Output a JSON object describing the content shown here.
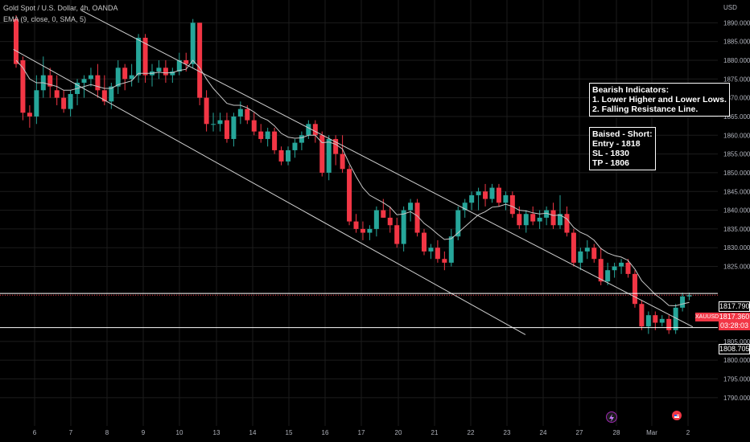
{
  "header": {
    "title": "Gold Spot / U.S. Dollar, 4h, OANDA",
    "indicator": "EMA (9, close, 0, SMA, 5)"
  },
  "axis": {
    "currency": "USD",
    "price_ticks": [
      "1890.000",
      "1885.000",
      "1880.000",
      "1875.000",
      "1870.000",
      "1865.000",
      "1860.000",
      "1855.000",
      "1850.000",
      "1845.000",
      "1840.000",
      "1835.000",
      "1830.000",
      "1825.000",
      "1805.000",
      "1800.000",
      "1795.000",
      "1790.000"
    ],
    "time_ticks": [
      "6",
      "7",
      "8",
      "9",
      "10",
      "13",
      "14",
      "15",
      "16",
      "17",
      "20",
      "21",
      "22",
      "23",
      "24",
      "27",
      "28",
      "Mar",
      "2"
    ]
  },
  "annotations": {
    "bearish": [
      "Bearish Indicators:",
      "1. Lower Higher and Lower Lows.",
      "2. Falling Resistance Line."
    ],
    "biased": [
      "Baised - Short:",
      "Entry - 1818",
      "SL - 1830",
      "TP -  1806"
    ]
  },
  "price_tags": {
    "level_upper": "1817.790",
    "symbol": "XAUUSD",
    "current_price": "1817.360",
    "countdown": "03:28:03",
    "level_lower": "1808.705"
  },
  "colors": {
    "up": "#26a69a",
    "down": "#f23645",
    "grid": "#1c1c1c",
    "ema": "#c8c8c8",
    "channel": "#d0d0d0",
    "level": "#ffffff",
    "current": "#f23645"
  },
  "chart_data": {
    "type": "candlestick",
    "title": "Gold Spot / U.S. Dollar, 4h, OANDA",
    "ylabel": "USD",
    "ylim": [
      1788,
      1895
    ],
    "candles": [
      [
        1891,
        1892,
        1878,
        1879
      ],
      [
        1880,
        1881,
        1864,
        1866
      ],
      [
        1866,
        1868,
        1862,
        1865
      ],
      [
        1865,
        1876,
        1863,
        1872
      ],
      [
        1872,
        1881,
        1870,
        1876
      ],
      [
        1876,
        1878,
        1870,
        1873
      ],
      [
        1872,
        1876,
        1868,
        1870
      ],
      [
        1870,
        1872,
        1866,
        1867
      ],
      [
        1867,
        1872,
        1865,
        1871
      ],
      [
        1871,
        1875,
        1868,
        1874
      ],
      [
        1874,
        1876,
        1870,
        1875
      ],
      [
        1875,
        1878,
        1873,
        1876
      ],
      [
        1876,
        1879,
        1870,
        1872
      ],
      [
        1872,
        1876,
        1868,
        1869
      ],
      [
        1869,
        1874,
        1867,
        1873
      ],
      [
        1873,
        1880,
        1871,
        1878
      ],
      [
        1878,
        1879,
        1872,
        1875
      ],
      [
        1875,
        1879,
        1873,
        1876
      ],
      [
        1876,
        1887,
        1874,
        1886
      ],
      [
        1886,
        1887,
        1874,
        1876
      ],
      [
        1876,
        1879,
        1873,
        1877
      ],
      [
        1877,
        1880,
        1875,
        1878
      ],
      [
        1878,
        1880,
        1874,
        1876
      ],
      [
        1876,
        1878,
        1874,
        1877
      ],
      [
        1877,
        1882,
        1876,
        1880
      ],
      [
        1880,
        1882,
        1877,
        1879
      ],
      [
        1879,
        1891,
        1878,
        1890
      ],
      [
        1890,
        1890,
        1868,
        1870
      ],
      [
        1870,
        1872,
        1861,
        1863
      ],
      [
        1863,
        1866,
        1861,
        1863
      ],
      [
        1863,
        1866,
        1861,
        1864
      ],
      [
        1864,
        1866,
        1858,
        1859
      ],
      [
        1859,
        1866,
        1857,
        1865
      ],
      [
        1865,
        1869,
        1863,
        1867
      ],
      [
        1867,
        1868,
        1863,
        1864
      ],
      [
        1864,
        1866,
        1860,
        1861
      ],
      [
        1861,
        1863,
        1858,
        1859
      ],
      [
        1859,
        1862,
        1857,
        1861
      ],
      [
        1861,
        1862,
        1855,
        1856
      ],
      [
        1856,
        1857,
        1852,
        1853
      ],
      [
        1853,
        1857,
        1852,
        1856
      ],
      [
        1856,
        1859,
        1854,
        1858
      ],
      [
        1858,
        1861,
        1856,
        1860
      ],
      [
        1860,
        1864,
        1859,
        1863
      ],
      [
        1863,
        1864,
        1858,
        1860
      ],
      [
        1860,
        1861,
        1849,
        1850
      ],
      [
        1850,
        1860,
        1848,
        1859
      ],
      [
        1859,
        1860,
        1852,
        1855
      ],
      [
        1855,
        1860,
        1850,
        1851
      ],
      [
        1851,
        1852,
        1836,
        1837
      ],
      [
        1837,
        1839,
        1834,
        1835
      ],
      [
        1835,
        1837,
        1832,
        1834
      ],
      [
        1834,
        1836,
        1832,
        1835
      ],
      [
        1835,
        1841,
        1833,
        1840
      ],
      [
        1840,
        1843,
        1838,
        1838
      ],
      [
        1838,
        1841,
        1834,
        1836
      ],
      [
        1836,
        1838,
        1830,
        1831
      ],
      [
        1831,
        1841,
        1829,
        1840
      ],
      [
        1840,
        1843,
        1837,
        1842
      ],
      [
        1842,
        1843,
        1833,
        1834
      ],
      [
        1834,
        1835,
        1828,
        1829
      ],
      [
        1829,
        1831,
        1827,
        1830
      ],
      [
        1830,
        1832,
        1826,
        1827
      ],
      [
        1827,
        1829,
        1824,
        1826
      ],
      [
        1826,
        1835,
        1825,
        1833
      ],
      [
        1833,
        1841,
        1832,
        1840
      ],
      [
        1840,
        1843,
        1838,
        1842
      ],
      [
        1842,
        1845,
        1840,
        1844
      ],
      [
        1844,
        1846,
        1840,
        1845
      ],
      [
        1845,
        1847,
        1841,
        1843
      ],
      [
        1843,
        1847,
        1842,
        1846
      ],
      [
        1846,
        1847,
        1841,
        1842
      ],
      [
        1842,
        1845,
        1840,
        1844
      ],
      [
        1844,
        1845,
        1838,
        1839
      ],
      [
        1839,
        1841,
        1835,
        1836
      ],
      [
        1836,
        1840,
        1834,
        1839
      ],
      [
        1839,
        1841,
        1836,
        1837
      ],
      [
        1837,
        1840,
        1835,
        1838
      ],
      [
        1838,
        1841,
        1836,
        1840
      ],
      [
        1840,
        1842,
        1835,
        1836
      ],
      [
        1836,
        1844,
        1835,
        1839
      ],
      [
        1839,
        1841,
        1833,
        1834
      ],
      [
        1834,
        1835,
        1825,
        1826
      ],
      [
        1826,
        1830,
        1824,
        1829
      ],
      [
        1829,
        1832,
        1827,
        1830
      ],
      [
        1830,
        1831,
        1826,
        1827
      ],
      [
        1827,
        1830,
        1820,
        1821
      ],
      [
        1821,
        1826,
        1820,
        1824
      ],
      [
        1824,
        1826,
        1822,
        1825
      ],
      [
        1825,
        1827,
        1823,
        1826
      ],
      [
        1826,
        1827,
        1822,
        1823
      ],
      [
        1823,
        1824,
        1814,
        1815
      ],
      [
        1815,
        1816,
        1808,
        1809
      ],
      [
        1809,
        1813,
        1807,
        1812
      ],
      [
        1812,
        1813,
        1808,
        1810
      ],
      [
        1810,
        1812,
        1809,
        1811
      ],
      [
        1811,
        1812,
        1807,
        1808
      ],
      [
        1808,
        1815,
        1807,
        1814
      ],
      [
        1814,
        1818,
        1813,
        1817
      ],
      [
        1817,
        1818,
        1816,
        1817.36
      ]
    ],
    "ema": [
      1880,
      1878,
      1875,
      1874,
      1874,
      1873.5,
      1873,
      1872,
      1872,
      1872.5,
      1873,
      1873.5,
      1873,
      1872.5,
      1872.5,
      1873.5,
      1874,
      1874.5,
      1876.5,
      1876.5,
      1876.5,
      1876.8,
      1876.6,
      1876.7,
      1877.3,
      1877.6,
      1880,
      1878,
      1875,
      1872.5,
      1870.5,
      1868.5,
      1868,
      1868,
      1867.3,
      1866.2,
      1864.8,
      1864,
      1862.5,
      1860.5,
      1859.5,
      1859.2,
      1859.3,
      1860,
      1860,
      1858,
      1858.2,
      1857.6,
      1856.3,
      1852.5,
      1849,
      1846,
      1844,
      1843,
      1842,
      1840.8,
      1838.8,
      1839,
      1839.6,
      1838.5,
      1836.5,
      1835.2,
      1833.6,
      1832.2,
      1832.4,
      1834,
      1835.6,
      1837.2,
      1838.8,
      1839.6,
      1840.8,
      1841,
      1841.6,
      1841,
      1840,
      1839.8,
      1839.3,
      1839,
      1839.2,
      1838.6,
      1838.7,
      1837.7,
      1835.4,
      1834.1,
      1833.3,
      1832,
      1829.8,
      1828.6,
      1827.9,
      1827.5,
      1826.6,
      1824.3,
      1821.2,
      1819.4,
      1817.5,
      1816.2,
      1814.6,
      1814.5,
      1815,
      1815.4
    ],
    "channel_lines": [
      {
        "name": "resistance",
        "from": [
          9.5,
          1893.4
        ],
        "to": [
          99.5,
          1808.9
        ]
      },
      {
        "name": "support",
        "from": [
          -0.4,
          1882.9
        ],
        "to": [
          74.9,
          1806.8
        ]
      }
    ],
    "horizontal_levels": [
      1817.79,
      1808.705
    ],
    "current_price": 1817.36
  }
}
